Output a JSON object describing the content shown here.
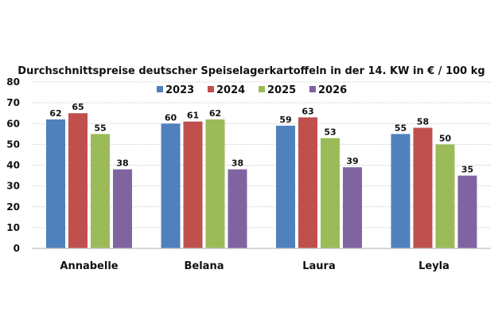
{
  "chart_data": {
    "type": "bar",
    "title": "Durchschnittspreise deutscher Speiselagerkartoffeln in der 14. KW in € / 100 kg",
    "xlabel": "",
    "ylabel": "",
    "ylim": [
      0,
      80
    ],
    "yticks": [
      0,
      10,
      20,
      30,
      40,
      50,
      60,
      70,
      80
    ],
    "grid": true,
    "legend_position": "top-center",
    "categories": [
      "Annabelle",
      "Belana",
      "Laura",
      "Leyla"
    ],
    "series": [
      {
        "name": "2023",
        "color": "#4F81BD",
        "values": [
          62,
          60,
          59,
          55
        ]
      },
      {
        "name": "2024",
        "color": "#C0504D",
        "values": [
          65,
          61,
          63,
          58
        ]
      },
      {
        "name": "2025",
        "color": "#9BBB59",
        "values": [
          55,
          62,
          53,
          50
        ]
      },
      {
        "name": "2026",
        "color": "#8064A2",
        "values": [
          38,
          38,
          39,
          35
        ]
      }
    ]
  }
}
